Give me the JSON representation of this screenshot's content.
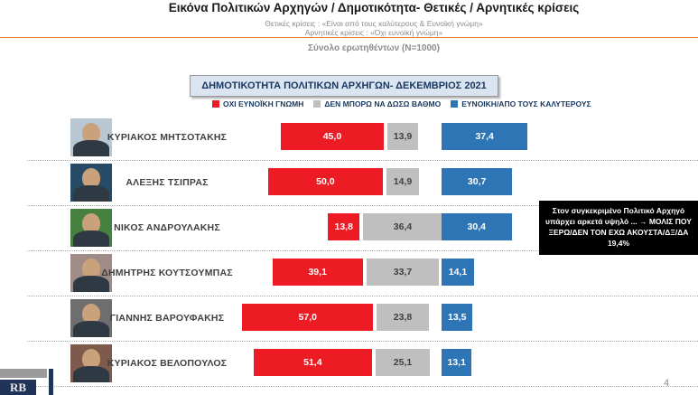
{
  "header": {
    "title": "Εικόνα Πολιτικών Αρχηγών  / Δημοτικότητα- Θετικές / Αρνητικές κρίσεις",
    "subtitle_positive": "Θετικές κρίσεις : «Είναι από τους καλύτερους &  Ευνοϊκή γνώμη»",
    "subtitle_negative": "Αρνητικές κρίσεις : «Όχι ευνοϊκή γνώμη»",
    "sample_line": "Σύνολο ερωτηθέντων (N=1000)"
  },
  "chart_title": "ΔΗΜΟΤΙΚΟΤΗΤΑ ΠΟΛΙΤΙΚΩΝ ΑΡΧΗΓΩΝ- ΔΕΚΕΜΒΡΙΟΣ 2021",
  "legend": [
    {
      "label": "ΟΧΙ ΕΥΝΟΪΚΗ ΓΝΩΜΗ",
      "color": "#ed1c24"
    },
    {
      "label": "ΔΕΝ ΜΠΟΡΩ ΝΑ ΔΩΣΩ ΒΑΘΜΟ",
      "color": "#bfbfbf"
    },
    {
      "label": "ΕΥΝΟΙΚΗ/ΑΠΟ ΤΟΥΣ ΚΑΛΥΤΕΡΟΥΣ",
      "color": "#2e75b6"
    }
  ],
  "chart_data": {
    "type": "bar",
    "orientation": "horizontal",
    "title": "ΔΗΜΟΤΙΚΟΤΗΤΑ ΠΟΛΙΤΙΚΩΝ ΑΡΧΗΓΩΝ- ΔΕΚΕΜΒΡΙΟΣ 2021",
    "value_format": "comma-decimal-percent",
    "categories": [
      "ΚΥΡΙΑΚΟΣ ΜΗΤΣΟΤΑΚΗΣ",
      "ΑΛΕΞΗΣ ΤΣΙΠΡΑΣ",
      "ΝΙΚΟΣ ΑΝΔΡΟΥΛΑΚΗΣ",
      "ΔΗΜΗΤΡΗΣ ΚΟΥΤΣΟΥΜΠΑΣ",
      "ΓΙΑΝΝΗΣ ΒΑΡΟΥΦΑΚΗΣ",
      "ΚΥΡΙΑΚΟΣ ΒΕΛΟΠΟΥΛΟΣ"
    ],
    "series": [
      {
        "name": "ΟΧΙ ΕΥΝΟΪΚΗ ΓΝΩΜΗ",
        "color": "#ed1c24",
        "values": [
          45.0,
          50.0,
          13.8,
          39.1,
          57.0,
          51.4
        ]
      },
      {
        "name": "ΔΕΝ ΜΠΟΡΩ ΝΑ ΔΩΣΩ ΒΑΘΜΟ",
        "color": "#bfbfbf",
        "values": [
          13.9,
          14.9,
          36.4,
          33.7,
          23.8,
          25.1
        ]
      },
      {
        "name": "ΕΥΝΟΙΚΗ/ΑΠΟ ΤΟΥΣ ΚΑΛΥΤΕΡΟΥΣ",
        "color": "#2e75b6",
        "values": [
          37.4,
          30.7,
          30.4,
          14.1,
          13.5,
          13.1
        ]
      }
    ],
    "photo_bg_colors": [
      "#b8c7d1",
      "#274b66",
      "#47813f",
      "#a08c86",
      "#6e6e6e",
      "#7d5a4b"
    ]
  },
  "annotation": {
    "text": "Στον συγκεκριμένο Πολιτικό Αρχηγό υπάρχει αρκετά υψηλό ... → ΜΟΛΙΣ ΠΟΥ ΞΕΡΩ/ΔΕΝ ΤΟΝ ΕΧΩ ΑΚΟΥΣΤΑ/ΔΞ/ΔΑ 19,4%"
  },
  "footer": {
    "logo_text": "RB",
    "page_number": "4"
  }
}
